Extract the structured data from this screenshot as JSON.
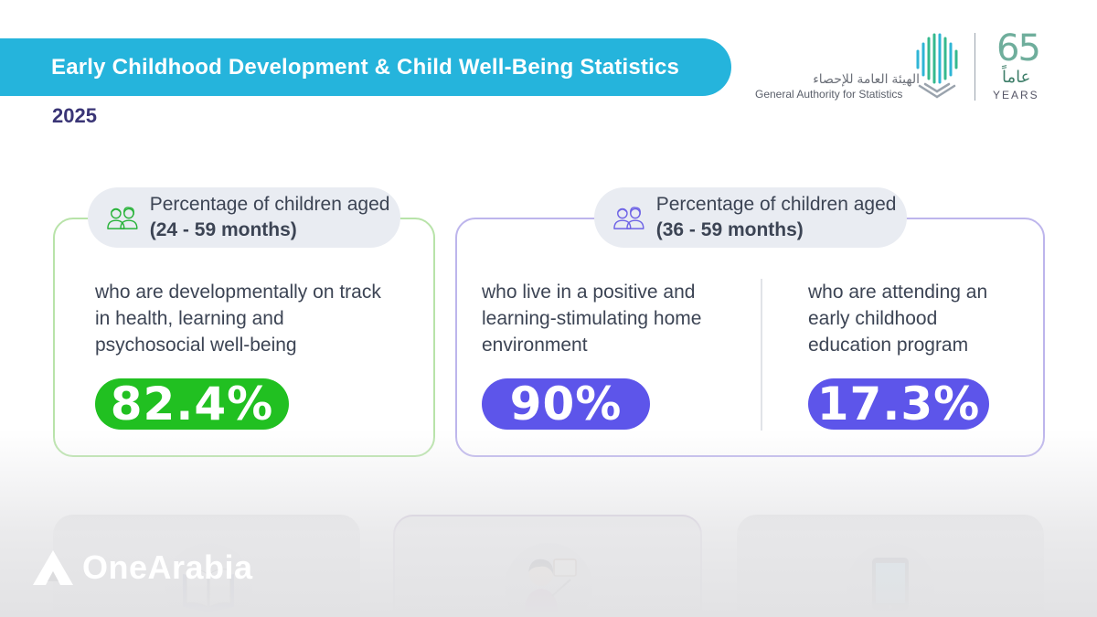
{
  "header": {
    "title": "Early Childhood Development & Child Well-Being Statistics",
    "year": "2025"
  },
  "logos": {
    "org_name_ar": "الهيئة العامة للإحصاء",
    "org_name_en": "General Authority for Statistics",
    "anniversary_number": "65",
    "anniversary_ar": "عاماً",
    "anniversary_en": "YEARS"
  },
  "group_left": {
    "label_prefix": "Percentage of children aged",
    "age_range": "(24 - 59 months)",
    "icon": "children-icon",
    "items": [
      {
        "description": "who are developmentally on track in health, learning and psychosocial well-being",
        "value": "82.4%",
        "color": "#21c021"
      }
    ]
  },
  "group_right": {
    "label_prefix": "Percentage of children aged",
    "age_range": "(36 - 59 months)",
    "icon": "children-icon",
    "items": [
      {
        "description": "who live in a positive and learning-stimulating home environment",
        "value": "90%",
        "color": "#5d55ea"
      },
      {
        "description": "who are attending an early childhood education program",
        "value": "17.3%",
        "color": "#5d55ea"
      }
    ]
  },
  "bottom_icons": [
    "book-icon",
    "teacher-icon",
    "tablet-icon"
  ],
  "watermark": {
    "text": "OneArabia",
    "icon": "onearabia-logo-icon"
  }
}
